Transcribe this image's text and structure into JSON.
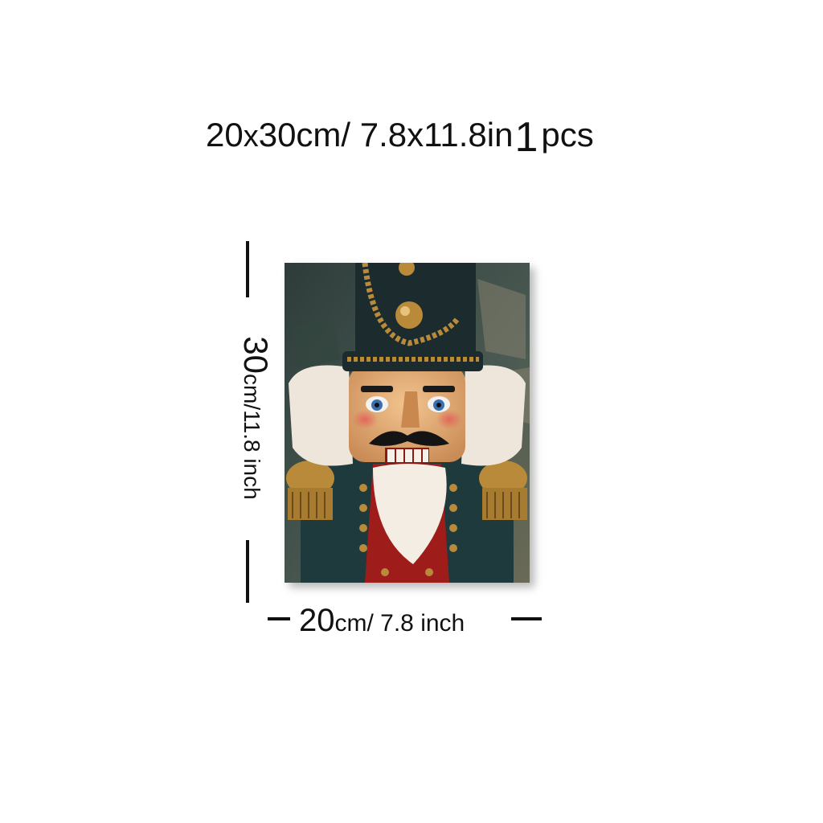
{
  "title": {
    "size_text": "20",
    "x_text": "x",
    "size_text_2": "30cm/ 7.8x11.8in",
    "quantity": "1",
    "quantity_unit": "pcs"
  },
  "height_label": {
    "value": "30",
    "unit_text": "cm/11.8 inch"
  },
  "width_label": {
    "value": "20",
    "unit_text": "cm/ 7.8 inch"
  },
  "artwork": {
    "subject": "nutcracker soldier painting"
  },
  "colors": {
    "hat": "#1b2b2e",
    "gold": "#b88a3a",
    "face": "#e2b07a",
    "beard": "#f3ede3",
    "coat": "#1f3a3c",
    "red": "#9e1d1a",
    "background": "#3a4a45"
  }
}
